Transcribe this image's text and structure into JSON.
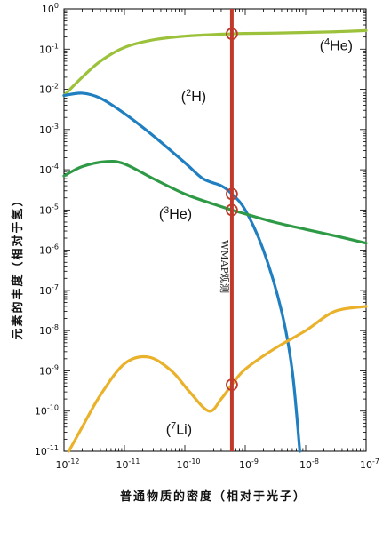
{
  "chart_data": {
    "type": "line",
    "xscale": "log",
    "yscale": "log",
    "xlim": [
      1e-12,
      1e-07
    ],
    "ylim": [
      1e-11,
      1
    ],
    "xlabel": "普通物质的密度（相对于光子）",
    "ylabel": "元素的丰度（相对于氢）",
    "x_ticks": [
      "10-12",
      "10-11",
      "10-10",
      "10-9",
      "10-8",
      "10-7"
    ],
    "y_ticks": [
      "100",
      "10-1",
      "10-2",
      "10-3",
      "10-4",
      "10-5",
      "10-6",
      "10-7",
      "10-8",
      "10-9",
      "10-10",
      "10-11"
    ],
    "series": [
      {
        "name": "(4He)",
        "color": "#9cc23c",
        "x": [
          1e-12,
          2e-12,
          4e-12,
          1e-11,
          3e-11,
          1e-10,
          3e-10,
          6e-10,
          1e-09,
          3e-09,
          1e-08,
          3e-08,
          1e-07
        ],
        "y": [
          0.007,
          0.02,
          0.05,
          0.11,
          0.17,
          0.21,
          0.23,
          0.24,
          0.245,
          0.25,
          0.26,
          0.27,
          0.29
        ]
      },
      {
        "name": "(2H)",
        "color": "#1f7fc0",
        "x": [
          1e-12,
          2e-12,
          4e-12,
          1e-11,
          3e-11,
          1e-10,
          2e-10,
          4e-10,
          6e-10,
          1e-09,
          2e-09,
          4e-09,
          6e-09,
          8e-09
        ],
        "y": [
          0.007,
          0.008,
          0.006,
          0.0025,
          0.0007,
          0.00015,
          6e-05,
          4e-05,
          2.5e-05,
          1e-05,
          1e-06,
          3e-08,
          1e-09,
          1e-11
        ]
      },
      {
        "name": "(3He)",
        "color": "#2e9a46",
        "x": [
          1e-12,
          2e-12,
          5e-12,
          1e-11,
          3e-11,
          1e-10,
          3e-10,
          6e-10,
          1e-09,
          3e-09,
          1e-08,
          3e-08,
          1e-07
        ],
        "y": [
          7e-05,
          0.00012,
          0.00016,
          0.00014,
          6e-05,
          2.5e-05,
          1.4e-05,
          1e-05,
          8e-06,
          5e-06,
          3.3e-06,
          2.3e-06,
          1.5e-06
        ]
      },
      {
        "name": "(7Li)",
        "color": "#eab12a",
        "x": [
          1.2e-12,
          2e-12,
          4e-12,
          1e-11,
          2.5e-11,
          6e-11,
          1.2e-10,
          2.5e-10,
          4e-10,
          6e-10,
          1e-09,
          3e-09,
          1e-08,
          3e-08,
          1e-07
        ],
        "y": [
          1e-11,
          4e-11,
          2.5e-10,
          1.5e-09,
          2.2e-09,
          1e-09,
          3e-10,
          1e-10,
          2e-10,
          4.5e-10,
          1.1e-09,
          3.5e-09,
          1e-08,
          3e-08,
          4e-08
        ]
      }
    ],
    "series_labels": [
      {
        "text": "(4He)",
        "sup": "4",
        "pre": "(",
        "post": "He)",
        "x": 3.2e-08,
        "y": 0.12
      },
      {
        "text": "(2H)",
        "sup": "2",
        "pre": "(",
        "post": "H)",
        "x": 1.4e-10,
        "y": 0.0065
      },
      {
        "text": "(3He)",
        "sup": "3",
        "pre": "(",
        "post": "He)",
        "x": 7e-11,
        "y": 8e-06
      },
      {
        "text": "(7Li)",
        "sup": "7",
        "pre": "(",
        "post": "Li)",
        "x": 8e-11,
        "y": 3.5e-11
      }
    ],
    "observation": {
      "label": "WMAP观测",
      "x": 6e-10,
      "color": "#c0392b",
      "markers": [
        0.24,
        2.5e-05,
        1e-05,
        4.5e-10
      ]
    }
  }
}
